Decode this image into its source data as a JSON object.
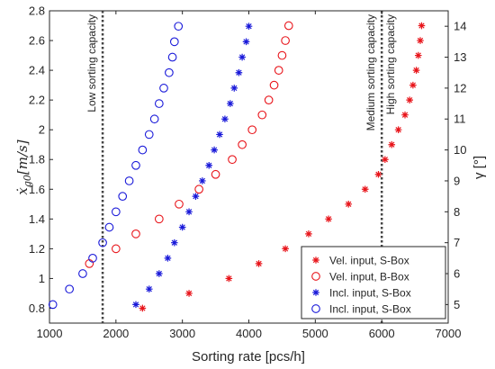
{
  "chart_data": {
    "type": "scatter",
    "xlabel": "Sorting rate [pcs/h]",
    "ylabel_left": "ẋ",
    "ylabel_left_sub": "g0",
    "ylabel_left_unit": "[m/s]",
    "ylabel_right": "γ [°]",
    "xlim": [
      1000,
      7000
    ],
    "ylim_left": [
      0.7,
      2.8
    ],
    "ylim_right": [
      4.4,
      14.5
    ],
    "xticks": [
      1000,
      2000,
      3000,
      4000,
      5000,
      6000,
      7000
    ],
    "yticks_left": [
      "0.8",
      "1",
      "1.2",
      "1.4",
      "1.6",
      "1.8",
      "2",
      "2.2",
      "2.4",
      "2.6",
      "2.8"
    ],
    "yticks_right": [
      "5",
      "6",
      "7",
      "8",
      "9",
      "10",
      "11",
      "12",
      "13",
      "14"
    ],
    "grid": false,
    "legend_position": "bottom-right",
    "vlines": [
      {
        "x": 1800,
        "label": "Low sorting capacity"
      },
      {
        "x": 6000,
        "label": "Medium sorting capacity",
        "label2": "High sorting capacity"
      }
    ],
    "series": [
      {
        "name": "Vel. input, S-Box",
        "marker": "star",
        "axis": "left",
        "color": "#e8141a",
        "points": [
          [
            2400,
            0.8
          ],
          [
            3100,
            0.9
          ],
          [
            3700,
            1.0
          ],
          [
            4150,
            1.1
          ],
          [
            4550,
            1.2
          ],
          [
            4900,
            1.3
          ],
          [
            5200,
            1.4
          ],
          [
            5500,
            1.5
          ],
          [
            5750,
            1.6
          ],
          [
            5950,
            1.7
          ],
          [
            6050,
            1.8
          ],
          [
            6150,
            1.9
          ],
          [
            6250,
            2.0
          ],
          [
            6350,
            2.1
          ],
          [
            6420,
            2.2
          ],
          [
            6470,
            2.3
          ],
          [
            6520,
            2.4
          ],
          [
            6550,
            2.5
          ],
          [
            6580,
            2.6
          ],
          [
            6600,
            2.7
          ]
        ]
      },
      {
        "name": "Vel. input, B-Box",
        "marker": "circle",
        "axis": "left",
        "color": "#e8141a",
        "points": [
          [
            1600,
            1.1
          ],
          [
            2000,
            1.2
          ],
          [
            2300,
            1.3
          ],
          [
            2650,
            1.4
          ],
          [
            2950,
            1.5
          ],
          [
            3250,
            1.6
          ],
          [
            3500,
            1.7
          ],
          [
            3750,
            1.8
          ],
          [
            3900,
            1.9
          ],
          [
            4050,
            2.0
          ],
          [
            4200,
            2.1
          ],
          [
            4300,
            2.2
          ],
          [
            4380,
            2.3
          ],
          [
            4450,
            2.4
          ],
          [
            4500,
            2.5
          ],
          [
            4550,
            2.6
          ],
          [
            4600,
            2.7
          ]
        ]
      },
      {
        "name": "Incl. input, S-Box",
        "marker": "star",
        "axis": "right",
        "color": "#1919d9",
        "points": [
          [
            2300,
            5.0
          ],
          [
            2500,
            5.5
          ],
          [
            2650,
            6.0
          ],
          [
            2780,
            6.5
          ],
          [
            2880,
            7.0
          ],
          [
            3000,
            7.5
          ],
          [
            3100,
            8.0
          ],
          [
            3200,
            8.5
          ],
          [
            3300,
            9.0
          ],
          [
            3400,
            9.5
          ],
          [
            3480,
            10.0
          ],
          [
            3560,
            10.5
          ],
          [
            3640,
            11.0
          ],
          [
            3720,
            11.5
          ],
          [
            3780,
            12.0
          ],
          [
            3850,
            12.5
          ],
          [
            3900,
            13.0
          ],
          [
            3960,
            13.5
          ],
          [
            4000,
            14.0
          ]
        ]
      },
      {
        "name": "Incl. input, S-Box",
        "marker": "circle",
        "axis": "right",
        "color": "#1919d9",
        "points": [
          [
            1050,
            5.0
          ],
          [
            1300,
            5.5
          ],
          [
            1500,
            6.0
          ],
          [
            1650,
            6.5
          ],
          [
            1800,
            7.0
          ],
          [
            1900,
            7.5
          ],
          [
            2000,
            8.0
          ],
          [
            2100,
            8.5
          ],
          [
            2200,
            9.0
          ],
          [
            2300,
            9.5
          ],
          [
            2400,
            10.0
          ],
          [
            2500,
            10.5
          ],
          [
            2580,
            11.0
          ],
          [
            2650,
            11.5
          ],
          [
            2720,
            12.0
          ],
          [
            2800,
            12.5
          ],
          [
            2850,
            13.0
          ],
          [
            2880,
            13.5
          ],
          [
            2940,
            14.0
          ]
        ]
      }
    ]
  }
}
